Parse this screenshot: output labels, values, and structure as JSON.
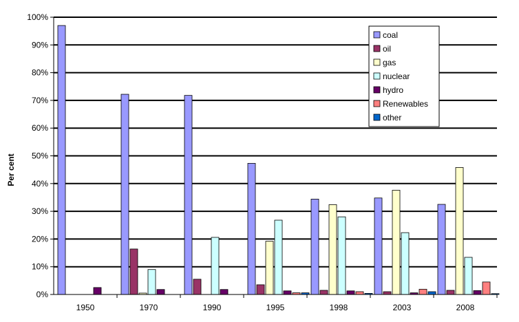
{
  "chart_data": {
    "type": "bar",
    "title": "",
    "xlabel": "",
    "ylabel": "Per cent",
    "ylim": [
      0,
      100
    ],
    "y_ticks": [
      "0%",
      "10%",
      "20%",
      "30%",
      "40%",
      "50%",
      "60%",
      "70%",
      "80%",
      "90%",
      "100%"
    ],
    "grid": true,
    "legend_position": "top-right",
    "categories": [
      "1950",
      "1970",
      "1990",
      "1995",
      "1998",
      "2003",
      "2008"
    ],
    "series": [
      {
        "name": "coal",
        "color": "#9999ff",
        "values": [
          97,
          72.2,
          71.8,
          47.3,
          34.4,
          34.8,
          32.5
        ]
      },
      {
        "name": "oil",
        "color": "#993366",
        "values": [
          0,
          16.4,
          5.5,
          3.5,
          1.5,
          1.0,
          1.5
        ]
      },
      {
        "name": "gas",
        "color": "#ffffcc",
        "values": [
          0,
          0.5,
          0,
          19.2,
          32.4,
          37.6,
          45.8
        ]
      },
      {
        "name": "nuclear",
        "color": "#ccffff",
        "values": [
          0,
          9.0,
          20.6,
          26.8,
          28.0,
          22.3,
          13.4
        ]
      },
      {
        "name": "hydro",
        "color": "#660066",
        "values": [
          2.5,
          1.8,
          1.8,
          1.3,
          1.3,
          0.6,
          1.4
        ]
      },
      {
        "name": "Renewables",
        "color": "#ff8080",
        "values": [
          0,
          0,
          0,
          0.6,
          1.0,
          1.9,
          4.5
        ]
      },
      {
        "name": "other",
        "color": "#0066cc",
        "values": [
          0,
          0,
          0,
          0.6,
          0.4,
          1.0,
          0.3
        ]
      }
    ]
  }
}
